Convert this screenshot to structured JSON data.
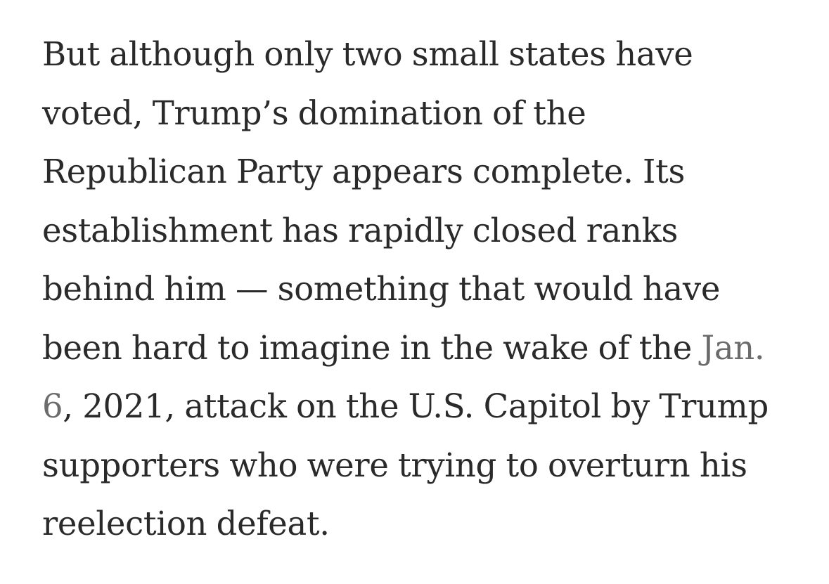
{
  "article": {
    "lines": [
      "But although only two small states have",
      "voted, Trump’s domination of the",
      "Republican Party appears complete. Its",
      "establishment has rapidly closed ranks",
      "behind him — something that would have",
      "been hard to imagine in the wake of the ",
      ", 2021, attack on the U.S. Capitol by Trump",
      "supporters who were trying to overturn his",
      "reelection defeat."
    ],
    "link_part1": "Jan.",
    "link_part2": "6"
  }
}
